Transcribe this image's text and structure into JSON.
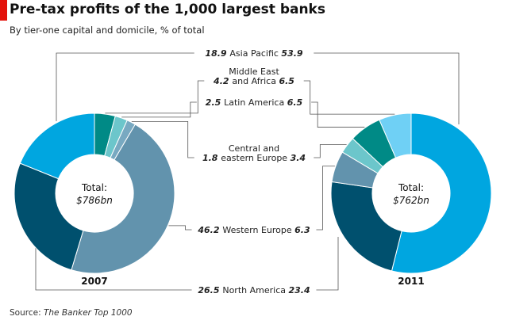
{
  "header": {
    "title": "Pre-tax profits of the 1,000 largest banks",
    "subtitle": "By tier-one capital and domicile, % of total",
    "source_label": "Source: ",
    "source_name": "The Banker Top 1000"
  },
  "chart_data": {
    "type": "pie",
    "donut": true,
    "unit": "% of total",
    "categories": [
      "Asia Pacific",
      "Middle East and Africa",
      "Latin America",
      "Central and eastern Europe",
      "Western Europe",
      "North America"
    ],
    "label_lines": [
      [
        "Asia Pacific"
      ],
      [
        "Middle East",
        "and Africa"
      ],
      [
        "Latin America"
      ],
      [
        "Central and",
        "eastern Europe"
      ],
      [
        "Western Europe"
      ],
      [
        "North America"
      ]
    ],
    "colors": [
      "#6fd0f5",
      "#008a86",
      "#6cc6cb",
      "#78a9c1",
      "#6293ad",
      "#00506e"
    ],
    "series": [
      {
        "name": "2007",
        "total_label": "Total:",
        "total_value": "$786bn",
        "values": [
          18.9,
          4.2,
          2.5,
          1.8,
          46.2,
          26.5
        ],
        "colors": [
          "#00a6e0",
          "#008a86",
          "#6cc6cb",
          "#78a9c1",
          "#6293ad",
          "#00506e"
        ]
      },
      {
        "name": "2011",
        "total_label": "Total:",
        "total_value": "$762bn",
        "values": [
          53.9,
          6.5,
          6.5,
          3.4,
          6.3,
          23.4
        ],
        "colors": [
          "#00a6e0",
          "#6fd0f5",
          "#008a86",
          "#6cc6cb",
          "#6293ad",
          "#00506e"
        ]
      }
    ]
  }
}
